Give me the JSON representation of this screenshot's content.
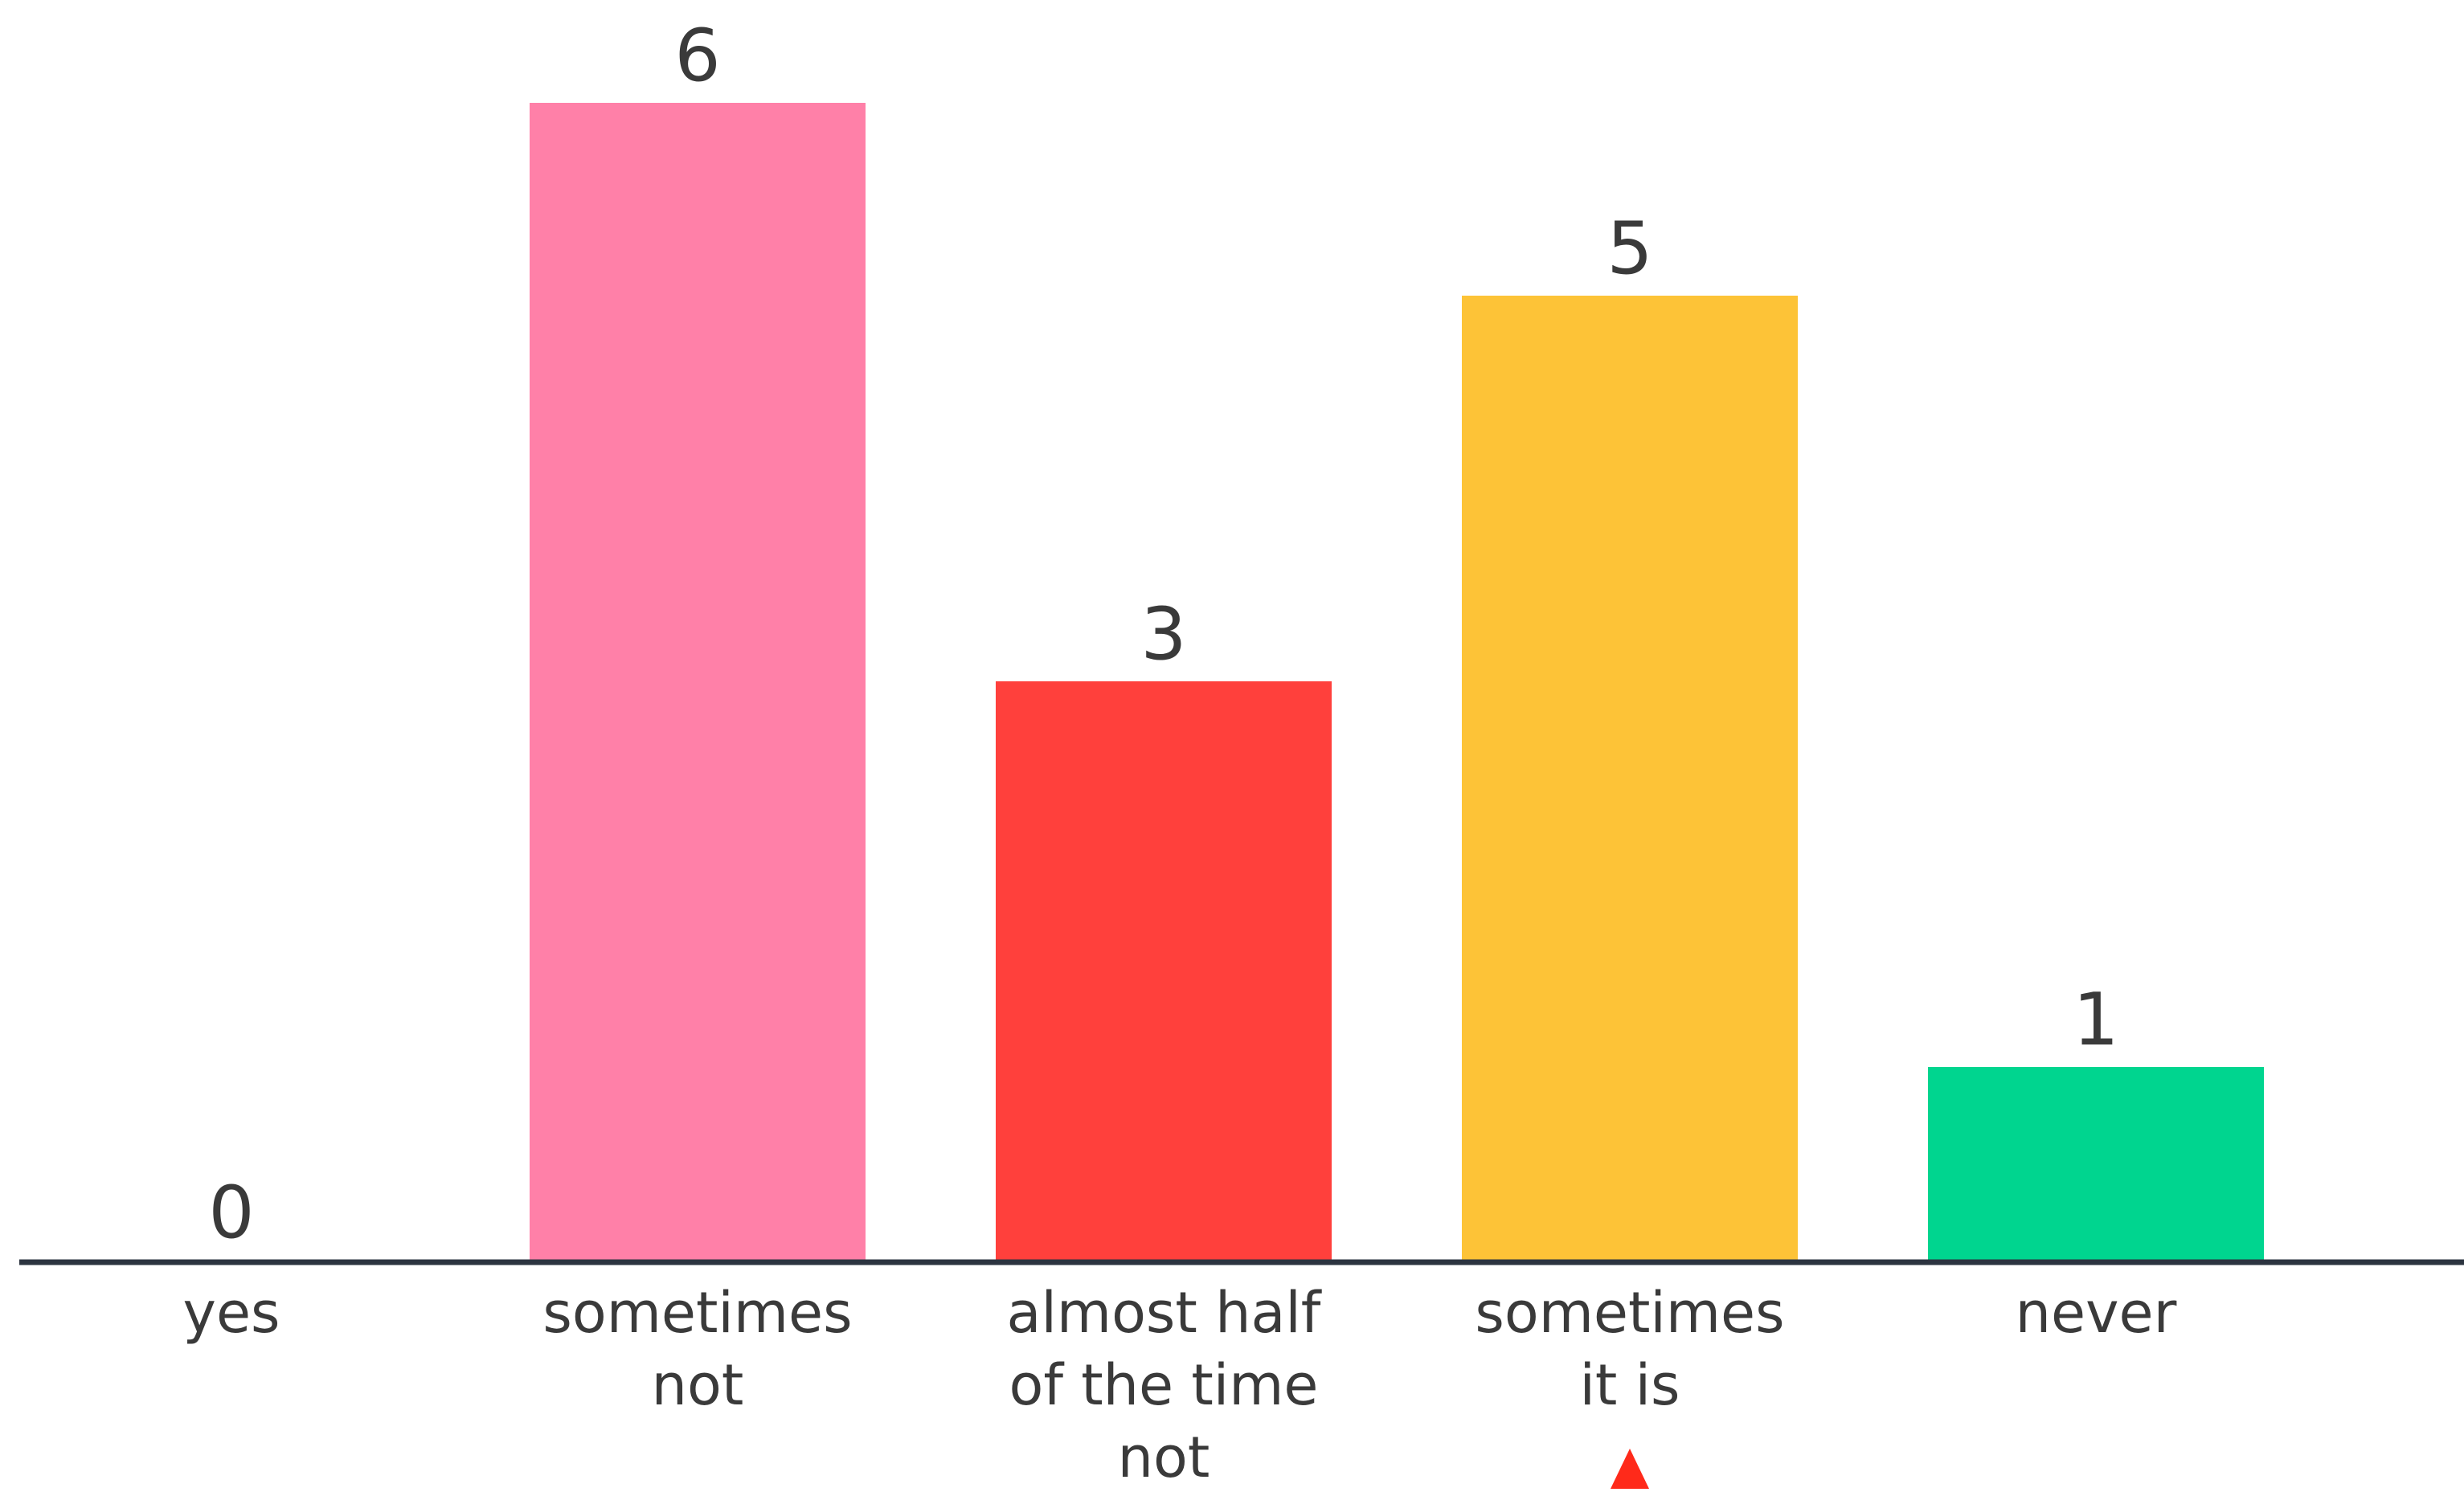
{
  "chart_data": {
    "type": "bar",
    "categories": [
      [
        "yes"
      ],
      [
        "sometimes",
        "not"
      ],
      [
        "almost half",
        "of the time",
        "not"
      ],
      [
        "sometimes",
        "it is"
      ],
      [
        "never"
      ]
    ],
    "values": [
      0,
      6,
      3,
      5,
      1
    ],
    "data_labels": [
      "0",
      "6",
      "3",
      "5",
      "1"
    ],
    "colors": [
      "#ff80a8",
      "#ff80a8",
      "#ff403c",
      "#fdc337",
      "#00d58f"
    ],
    "axis_color": "#2c3440",
    "label_color": "#3a3a3a",
    "marker_color": "#ff2a1a",
    "marker_under_category": 3,
    "title": "",
    "xlabel": "",
    "ylabel": "",
    "ylim": [
      0,
      6
    ],
    "grid": false,
    "legend": "none"
  }
}
